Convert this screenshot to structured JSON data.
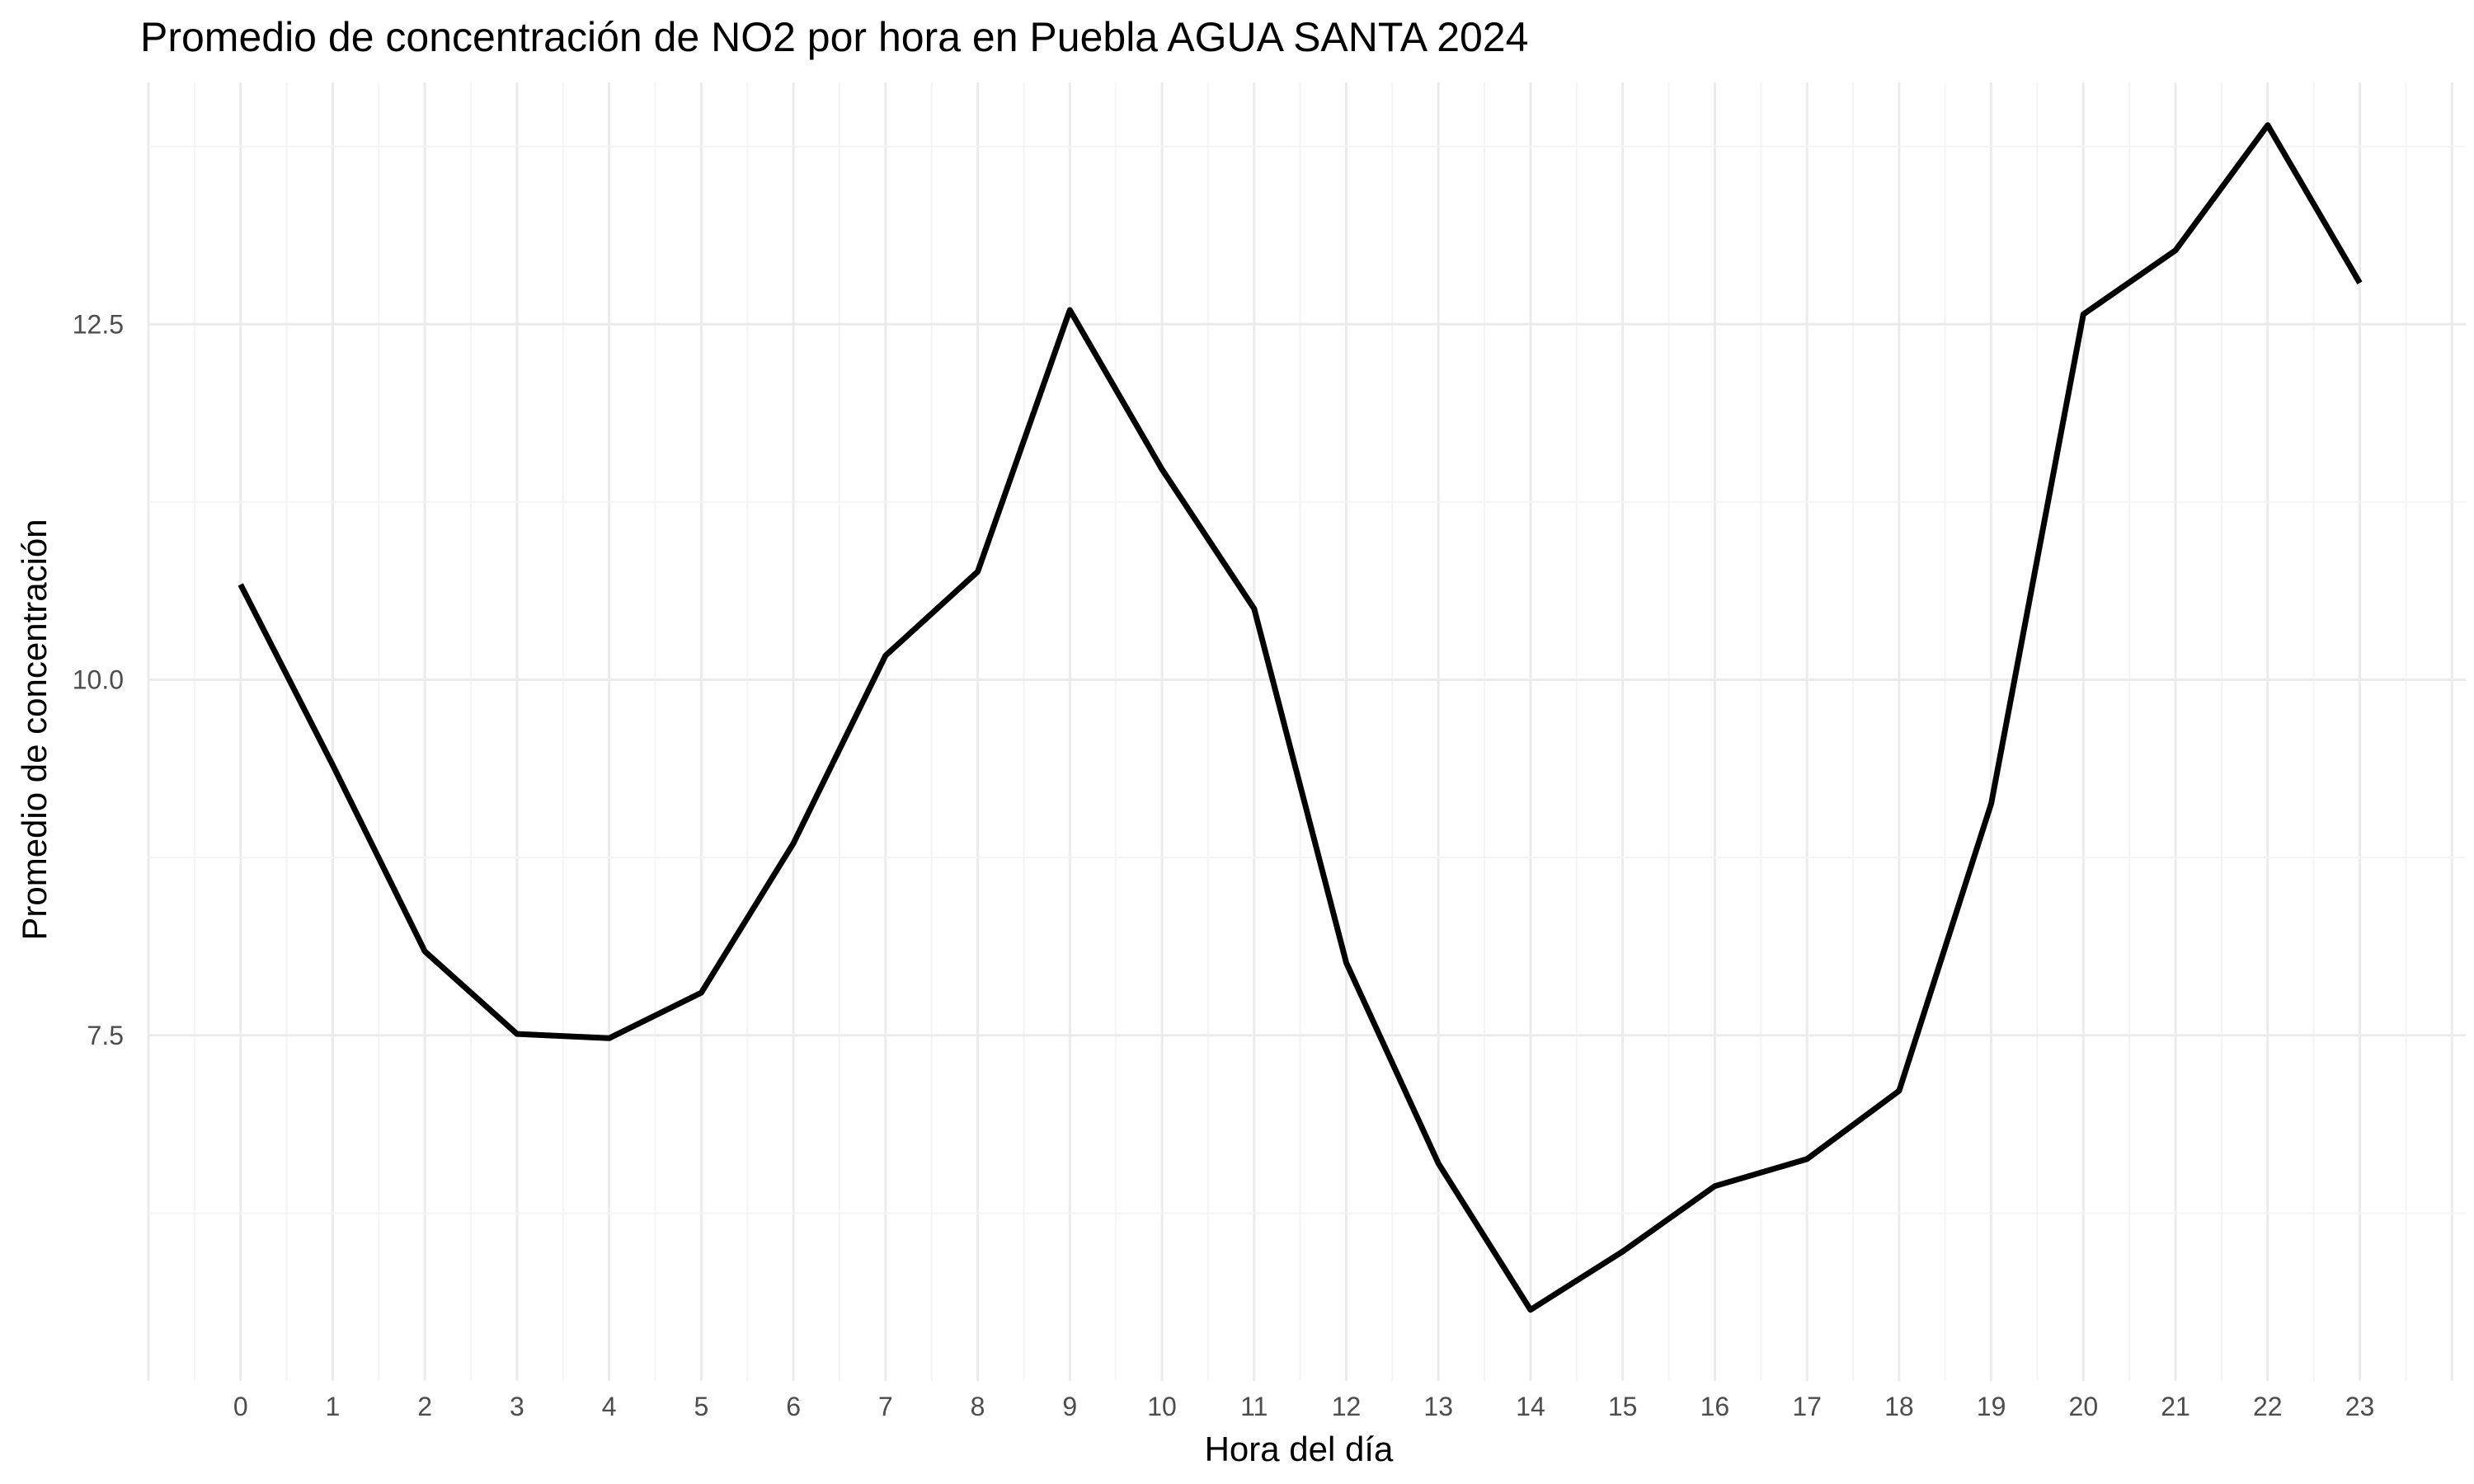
{
  "chart_data": {
    "type": "line",
    "title": "Promedio de concentración de NO2 por hora en Puebla AGUA SANTA 2024",
    "xlabel": "Hora del día",
    "ylabel": "Promedio de concentración",
    "x": [
      0,
      1,
      2,
      3,
      4,
      5,
      6,
      7,
      8,
      9,
      10,
      11,
      12,
      13,
      14,
      15,
      16,
      17,
      18,
      19,
      20,
      21,
      22,
      23
    ],
    "x_tick_labels": [
      "0",
      "1",
      "2",
      "3",
      "4",
      "5",
      "6",
      "7",
      "8",
      "9",
      "10",
      "11",
      "12",
      "13",
      "14",
      "15",
      "16",
      "17",
      "18",
      "19",
      "20",
      "21",
      "22",
      "23"
    ],
    "series": [
      {
        "values": [
          10.67,
          9.4,
          8.09,
          7.51,
          7.48,
          7.8,
          8.85,
          10.17,
          10.76,
          12.6,
          11.48,
          10.5,
          8.01,
          6.6,
          5.57,
          5.98,
          6.44,
          6.63,
          7.11,
          9.13,
          12.57,
          13.02,
          13.9,
          12.79
        ],
        "color": "#000000"
      }
    ],
    "y_ticks": [
      7.5,
      10.0,
      12.5
    ],
    "y_tick_labels": [
      "7.5",
      "10.0",
      "12.5"
    ],
    "ylim": [
      5.07,
      14.2
    ],
    "xlim": [
      -1.0,
      24.15
    ],
    "grid": true,
    "legend": "none",
    "colors": {
      "background": "#ffffff",
      "grid_major": "#ebebeb",
      "grid_minor": "#f4f4f4",
      "line": "#000000",
      "tick_text": "#4d4d4d"
    }
  }
}
